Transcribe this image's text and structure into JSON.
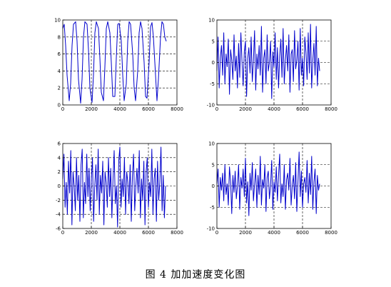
{
  "caption": "图 4  加加速度变化图",
  "colors": {
    "trace": "#0000cc",
    "axes": "#000000",
    "grid": "#000000",
    "background": "#ffffff"
  },
  "chart_data": [
    {
      "type": "line",
      "title": "",
      "xlabel": "",
      "ylabel": "",
      "xlim": [
        0,
        8000
      ],
      "ylim": [
        0,
        10
      ],
      "xticks": [
        0,
        2000,
        4000,
        6000,
        8000
      ],
      "yticks": [
        0,
        2,
        4,
        6,
        8,
        10
      ],
      "grid": "dashed",
      "series": [
        {
          "x": [
            0,
            100,
            200,
            300,
            450,
            550,
            650,
            750,
            900,
            1000,
            1100,
            1250,
            1350,
            1450,
            1550,
            1700,
            1800,
            1900,
            2050,
            2150,
            2250,
            2350,
            2500,
            2600,
            2700,
            2850,
            2950,
            3050,
            3150,
            3300,
            3400,
            3500,
            3650,
            3750,
            3850,
            3950,
            4100,
            4200,
            4300,
            4450,
            4550,
            4650,
            4750,
            4900,
            5000,
            5100,
            5250,
            5350,
            5450,
            5550,
            5700,
            5800,
            5900,
            6050,
            6150,
            6250,
            6350,
            6500,
            6600,
            6700,
            6850,
            6950,
            7050,
            7150,
            7250
          ],
          "y": [
            9.0,
            9.5,
            7.0,
            3.5,
            0.5,
            2.5,
            7.0,
            9.5,
            9.8,
            7.5,
            3.0,
            0.2,
            3.0,
            8.0,
            9.8,
            9.5,
            6.5,
            2.0,
            0.3,
            3.5,
            8.5,
            9.8,
            9.0,
            5.5,
            1.5,
            0.5,
            4.5,
            9.0,
            9.8,
            8.5,
            5.0,
            1.0,
            1.0,
            5.5,
            9.5,
            9.6,
            7.5,
            3.5,
            0.5,
            2.5,
            7.5,
            9.8,
            9.5,
            6.0,
            2.0,
            0.5,
            4.0,
            8.5,
            9.8,
            9.0,
            5.0,
            1.0,
            0.8,
            5.0,
            9.2,
            9.7,
            8.0,
            3.5,
            0.5,
            3.0,
            8.0,
            9.8,
            9.5,
            8.0,
            7.5
          ]
        }
      ]
    },
    {
      "type": "line",
      "title": "",
      "xlabel": "",
      "ylabel": "",
      "xlim": [
        0,
        8000
      ],
      "ylim": [
        -10,
        10
      ],
      "xticks": [
        0,
        2000,
        4000,
        6000,
        8000
      ],
      "yticks": [
        -10,
        -5,
        0,
        5,
        10
      ],
      "grid": "dashed",
      "series": [
        {
          "x": [
            0,
            80,
            160,
            240,
            320,
            400,
            480,
            560,
            640,
            720,
            800,
            880,
            960,
            1040,
            1120,
            1200,
            1280,
            1360,
            1440,
            1520,
            1600,
            1680,
            1760,
            1840,
            1920,
            2000,
            2080,
            2160,
            2240,
            2320,
            2400,
            2480,
            2560,
            2640,
            2720,
            2800,
            2880,
            2960,
            3040,
            3120,
            3200,
            3280,
            3360,
            3440,
            3520,
            3600,
            3680,
            3760,
            3840,
            3920,
            4000,
            4080,
            4160,
            4240,
            4320,
            4400,
            4480,
            4560,
            4640,
            4720,
            4800,
            4880,
            4960,
            5040,
            5120,
            5200,
            5280,
            5360,
            5440,
            5520,
            5600,
            5680,
            5760,
            5840,
            5920,
            6000,
            6080,
            6160,
            6240,
            6320,
            6400,
            6480,
            6560,
            6640,
            6720,
            6800,
            6880,
            6960,
            7040,
            7120,
            7200
          ],
          "y": [
            -2.0,
            6.0,
            -6.0,
            1.0,
            4.0,
            -3.0,
            7.0,
            -5.0,
            2.0,
            -1.0,
            5.5,
            -7.5,
            3.0,
            0.5,
            -4.0,
            6.5,
            -2.0,
            1.5,
            -6.0,
            4.5,
            -3.5,
            7.0,
            0.0,
            -5.5,
            2.5,
            5.0,
            -8.0,
            1.0,
            3.5,
            -2.5,
            6.0,
            -4.5,
            0.5,
            7.5,
            -6.5,
            2.0,
            -1.5,
            4.0,
            -3.0,
            8.5,
            -7.0,
            1.0,
            3.0,
            -5.0,
            6.5,
            -2.0,
            0.0,
            5.0,
            -8.5,
            2.5,
            -1.0,
            7.0,
            -4.0,
            3.5,
            -6.0,
            1.5,
            5.5,
            -3.5,
            8.0,
            -5.0,
            0.5,
            4.0,
            -2.0,
            6.5,
            -7.0,
            2.0,
            3.0,
            -4.5,
            7.5,
            -1.5,
            0.5,
            5.0,
            -6.5,
            8.0,
            -3.0,
            1.0,
            -5.5,
            6.0,
            2.5,
            -4.0,
            7.0,
            -2.5,
            9.0,
            -6.0,
            0.5,
            4.5,
            -3.0,
            8.5,
            -5.5,
            1.0,
            -2.0
          ]
        }
      ]
    },
    {
      "type": "line",
      "title": "",
      "xlabel": "",
      "ylabel": "",
      "xlim": [
        0,
        8000
      ],
      "ylim": [
        -6,
        6
      ],
      "xticks": [
        0,
        2000,
        4000,
        6000,
        8000
      ],
      "yticks": [
        -6,
        -4,
        -2,
        0,
        2,
        4,
        6
      ],
      "grid": "dashed",
      "series": [
        {
          "x": [
            0,
            80,
            160,
            240,
            320,
            400,
            480,
            560,
            640,
            720,
            800,
            880,
            960,
            1040,
            1120,
            1200,
            1280,
            1360,
            1440,
            1520,
            1600,
            1680,
            1760,
            1840,
            1920,
            2000,
            2080,
            2160,
            2240,
            2320,
            2400,
            2480,
            2560,
            2640,
            2720,
            2800,
            2880,
            2960,
            3040,
            3120,
            3200,
            3280,
            3360,
            3440,
            3520,
            3600,
            3680,
            3760,
            3840,
            3920,
            4000,
            4080,
            4160,
            4240,
            4320,
            4400,
            4480,
            4560,
            4640,
            4720,
            4800,
            4880,
            4960,
            5040,
            5120,
            5200,
            5280,
            5360,
            5440,
            5520,
            5600,
            5680,
            5760,
            5840,
            5920,
            6000,
            6080,
            6160,
            6240,
            6320,
            6400,
            6480,
            6560,
            6640,
            6720,
            6800,
            6880,
            6960,
            7040,
            7120,
            7200
          ],
          "y": [
            1.0,
            4.5,
            -3.0,
            0.5,
            -4.0,
            3.5,
            -1.0,
            5.0,
            -5.5,
            2.0,
            0.0,
            -3.5,
            4.0,
            -2.0,
            1.5,
            -5.0,
            3.0,
            5.2,
            -4.5,
            0.5,
            -2.5,
            4.5,
            -1.5,
            2.5,
            -3.5,
            1.0,
            4.0,
            -5.0,
            0.0,
            3.0,
            -2.0,
            5.2,
            -4.0,
            1.5,
            -1.0,
            3.5,
            -5.5,
            2.0,
            0.5,
            -3.0,
            4.0,
            -1.5,
            2.5,
            -4.5,
            1.0,
            5.0,
            -2.5,
            0.0,
            -5.8,
            3.5,
            5.5,
            -3.0,
            1.0,
            -1.5,
            4.0,
            -4.0,
            2.0,
            0.5,
            -2.5,
            3.0,
            -5.0,
            1.5,
            4.5,
            -3.5,
            0.0,
            2.5,
            -1.0,
            5.0,
            -4.5,
            1.0,
            -2.0,
            3.5,
            -5.5,
            2.0,
            4.0,
            -3.0,
            0.5,
            -1.5,
            5.2,
            -4.0,
            1.0,
            2.5,
            -5.0,
            3.5,
            -2.0,
            0.5,
            5.5,
            -3.5,
            1.5,
            -4.5,
            0.0
          ]
        }
      ]
    },
    {
      "type": "line",
      "title": "",
      "xlabel": "",
      "ylabel": "",
      "xlim": [
        0,
        8000
      ],
      "ylim": [
        -10,
        10
      ],
      "xticks": [
        0,
        2000,
        4000,
        6000,
        8000
      ],
      "yticks": [
        -10,
        -5,
        0,
        5,
        10
      ],
      "grid": "dashed",
      "series": [
        {
          "x": [
            0,
            80,
            160,
            240,
            320,
            400,
            480,
            560,
            640,
            720,
            800,
            880,
            960,
            1040,
            1120,
            1200,
            1280,
            1360,
            1440,
            1520,
            1600,
            1680,
            1760,
            1840,
            1920,
            2000,
            2080,
            2160,
            2240,
            2320,
            2400,
            2480,
            2560,
            2640,
            2720,
            2800,
            2880,
            2960,
            3040,
            3120,
            3200,
            3280,
            3360,
            3440,
            3520,
            3600,
            3680,
            3760,
            3840,
            3920,
            4000,
            4080,
            4160,
            4240,
            4320,
            4400,
            4480,
            4560,
            4640,
            4720,
            4800,
            4880,
            4960,
            5040,
            5120,
            5200,
            5280,
            5360,
            5440,
            5520,
            5600,
            5680,
            5760,
            5840,
            5920,
            6000,
            6080,
            6160,
            6240,
            6320,
            6400,
            6480,
            6560,
            6640,
            6720,
            6800,
            6880,
            6960,
            7040,
            7120,
            7200
          ],
          "y": [
            0.5,
            4.0,
            -5.0,
            2.0,
            -1.0,
            3.0,
            -3.5,
            5.0,
            -2.0,
            0.5,
            -4.5,
            4.5,
            1.0,
            -6.5,
            2.5,
            -1.5,
            3.5,
            -3.0,
            0.0,
            5.0,
            -5.5,
            2.0,
            -0.5,
            4.0,
            -2.5,
            6.5,
            -4.0,
            1.0,
            -7.0,
            3.0,
            -1.0,
            5.5,
            -3.5,
            0.5,
            4.0,
            -5.0,
            2.5,
            -2.0,
            7.0,
            -4.5,
            1.5,
            -0.5,
            5.0,
            -6.0,
            2.0,
            3.5,
            -3.0,
            0.0,
            6.0,
            -5.5,
            1.0,
            -1.5,
            4.5,
            -3.5,
            2.5,
            7.5,
            -4.0,
            0.5,
            -2.5,
            5.0,
            -5.5,
            1.5,
            3.0,
            -1.0,
            6.5,
            -4.5,
            0.0,
            2.5,
            -3.0,
            5.5,
            -6.0,
            1.0,
            8.0,
            -2.5,
            3.5,
            -5.0,
            0.5,
            2.0,
            -1.5,
            6.0,
            -4.0,
            3.0,
            -2.0,
            7.0,
            -5.5,
            1.0,
            4.0,
            -6.5,
            2.5,
            -1.0,
            0.5
          ]
        }
      ]
    }
  ]
}
